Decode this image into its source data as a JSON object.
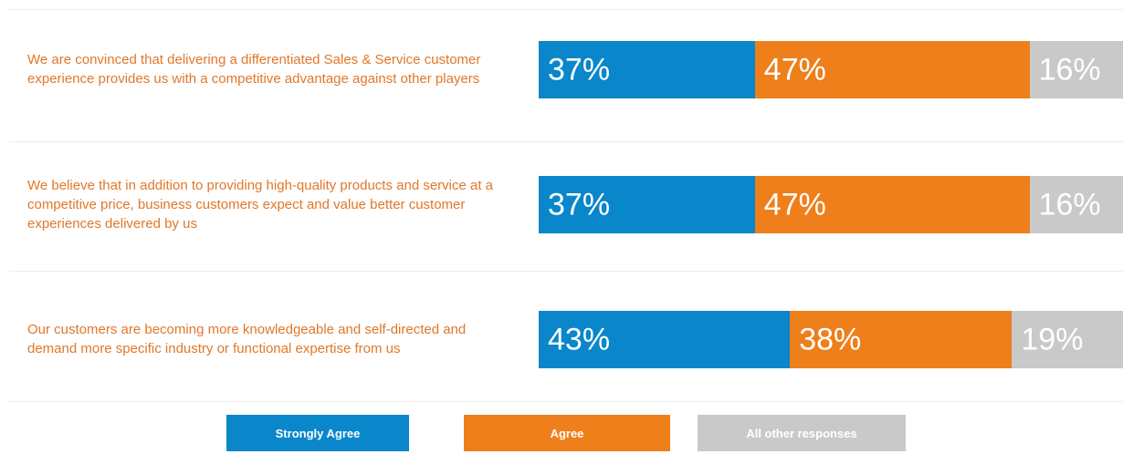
{
  "chart_data": {
    "type": "stacked-bar-horizontal",
    "categories": [
      "We are convinced that delivering a differentiated Sales & Service customer experience provides us with a competitive advantage against other players",
      "We believe that in addition to providing high-quality products and service at a competitive price, business customers expect and value better customer experiences delivered by us",
      "Our customers are becoming more knowledgeable and self-directed and demand more specific industry or functional expertise from us"
    ],
    "series": [
      {
        "name": "Strongly Agree",
        "color": "#0a86ca",
        "values": [
          37,
          37,
          43
        ],
        "value_labels": [
          "37%",
          "37%",
          "43%"
        ]
      },
      {
        "name": "Agree",
        "color": "#ee7f1b",
        "values": [
          47,
          47,
          38
        ],
        "value_labels": [
          "47%",
          "47%",
          "38%"
        ]
      },
      {
        "name": "All other responses",
        "color": "#c9c9c9",
        "values": [
          16,
          16,
          19
        ],
        "value_labels": [
          "16%",
          "16%",
          "19%"
        ]
      }
    ],
    "xlim": [
      0,
      100
    ],
    "legend": "bottom"
  }
}
